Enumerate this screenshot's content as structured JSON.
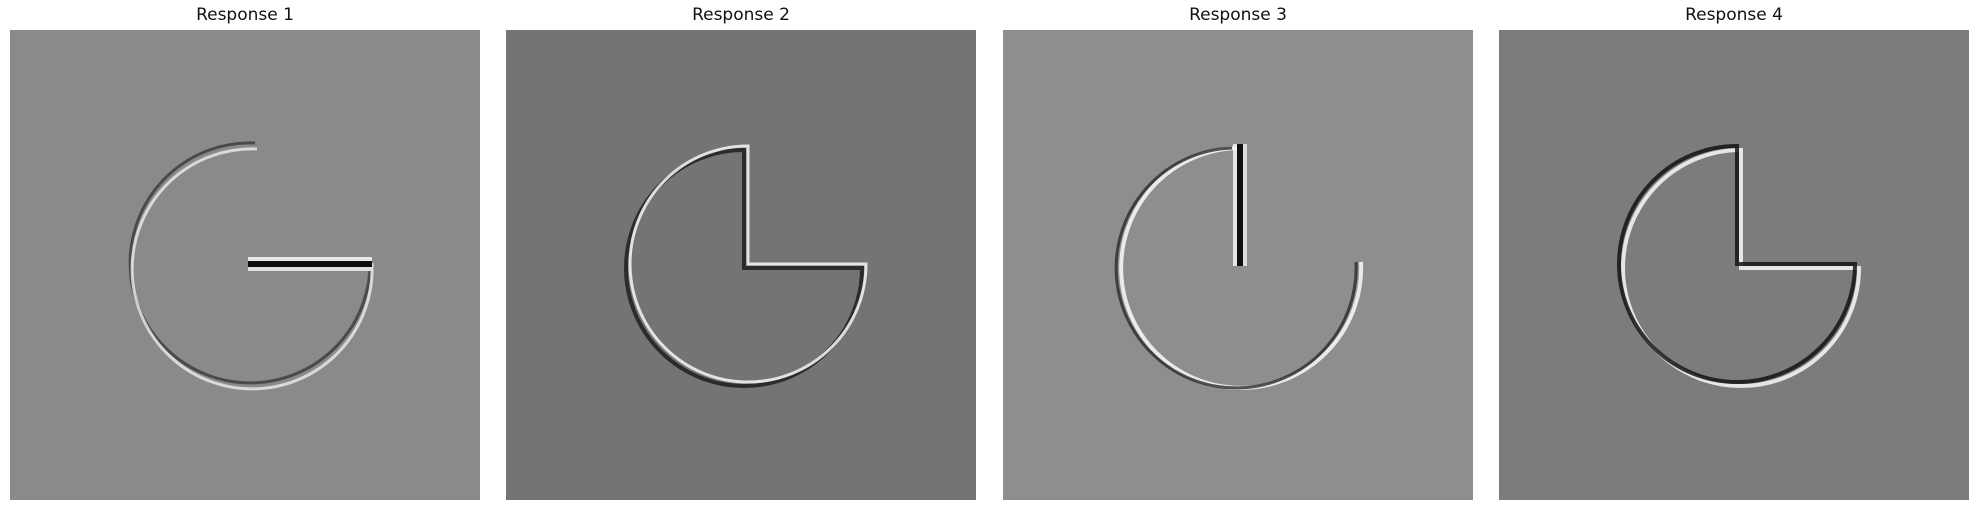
{
  "panels": [
    {
      "title": "Response 1",
      "background": "#8a8a8a"
    },
    {
      "title": "Response 2",
      "background": "#747474"
    },
    {
      "title": "Response 3",
      "background": "#8e8e8e"
    },
    {
      "title": "Response 4",
      "background": "#7c7c7c"
    }
  ]
}
